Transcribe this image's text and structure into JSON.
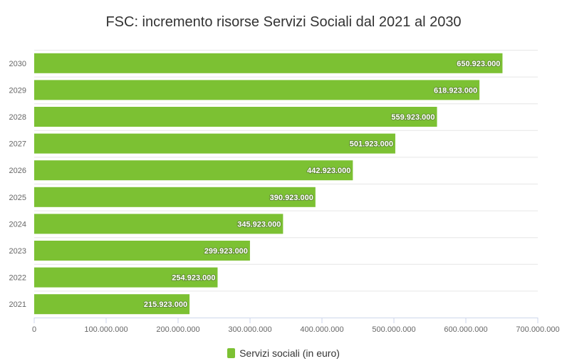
{
  "chart_data": {
    "type": "bar",
    "orientation": "horizontal",
    "title": "FSC: incremento risorse Servizi Sociali dal 2021 al 2030",
    "categories": [
      "2030",
      "2029",
      "2028",
      "2027",
      "2026",
      "2025",
      "2024",
      "2023",
      "2022",
      "2021"
    ],
    "series": [
      {
        "name": "Servizi sociali (in euro)",
        "color": "#7cc133",
        "values": [
          650923000,
          618923000,
          559923000,
          501923000,
          442923000,
          390923000,
          345923000,
          299923000,
          254923000,
          215923000
        ],
        "labels": [
          "650.923.000",
          "618.923.000",
          "559.923.000",
          "501.923.000",
          "442.923.000",
          "390.923.000",
          "345.923.000",
          "299.923.000",
          "254.923.000",
          "215.923.000"
        ]
      }
    ],
    "xlim": [
      0,
      700000000
    ],
    "xticks": [
      0,
      100000000,
      200000000,
      300000000,
      400000000,
      500000000,
      600000000,
      700000000
    ],
    "xtick_labels": [
      "0",
      "100.000.000",
      "200.000.000",
      "300.000.000",
      "400.000.000",
      "500.000.000",
      "600.000.000",
      "700.000.000"
    ],
    "grid": true,
    "legend": "bottom"
  }
}
